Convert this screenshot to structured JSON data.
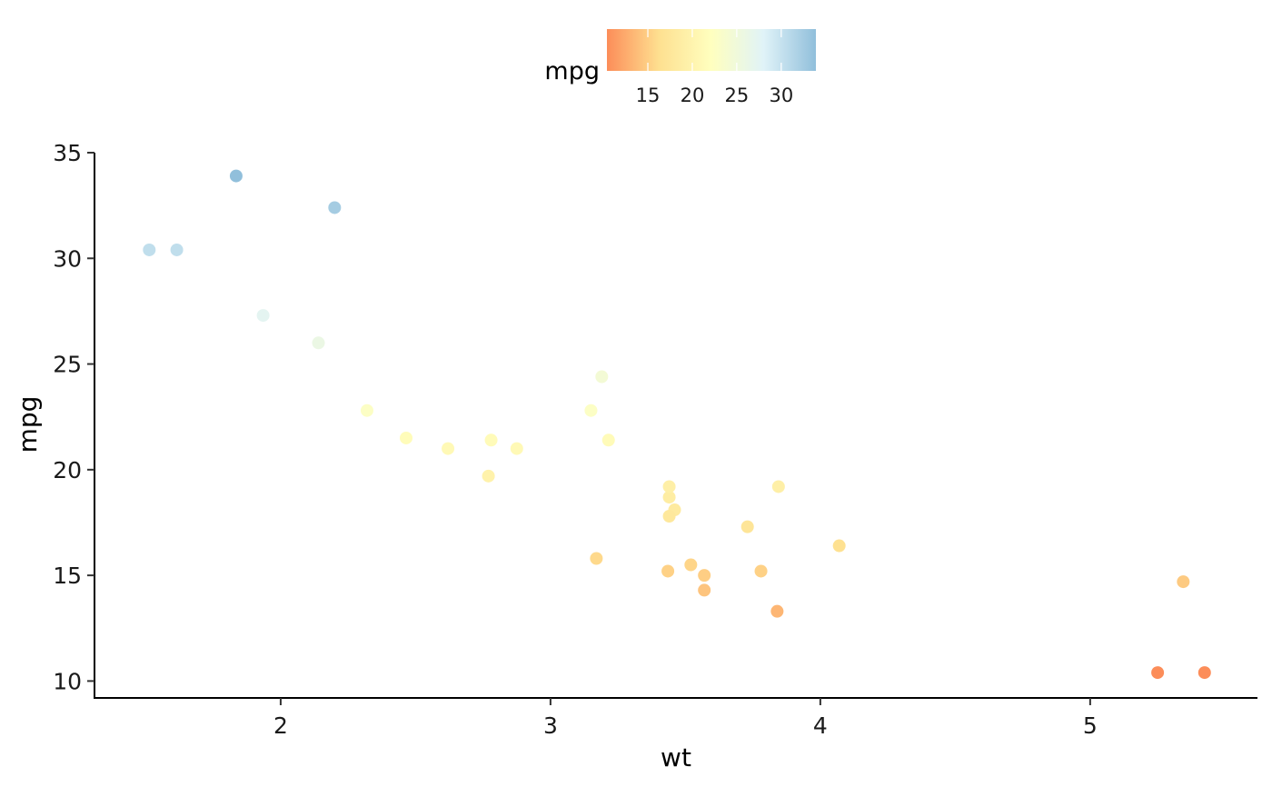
{
  "chart_data": {
    "type": "scatter",
    "xlabel": "wt",
    "ylabel": "mpg",
    "xlim": [
      1.31,
      5.62
    ],
    "ylim": [
      9.2,
      35.0
    ],
    "x_ticks": [
      2,
      3,
      4,
      5
    ],
    "y_ticks": [
      10,
      15,
      20,
      25,
      30,
      35
    ],
    "grid": false,
    "legend": {
      "title": "mpg",
      "position": "top",
      "type": "colorbar",
      "range": [
        10.4,
        33.9
      ],
      "ticks": [
        15,
        20,
        25,
        30
      ],
      "colors": [
        "#fc8d59",
        "#fee090",
        "#ffffbf",
        "#e0f3f8",
        "#91bfdb"
      ]
    },
    "color_by": "mpg",
    "points": [
      {
        "x": 2.62,
        "y": 21.0
      },
      {
        "x": 2.875,
        "y": 21.0
      },
      {
        "x": 2.32,
        "y": 22.8
      },
      {
        "x": 3.215,
        "y": 21.4
      },
      {
        "x": 3.44,
        "y": 18.7
      },
      {
        "x": 3.46,
        "y": 18.1
      },
      {
        "x": 3.57,
        "y": 14.3
      },
      {
        "x": 3.19,
        "y": 24.4
      },
      {
        "x": 3.15,
        "y": 22.8
      },
      {
        "x": 3.44,
        "y": 19.2
      },
      {
        "x": 3.44,
        "y": 17.8
      },
      {
        "x": 4.07,
        "y": 16.4
      },
      {
        "x": 3.73,
        "y": 17.3
      },
      {
        "x": 3.78,
        "y": 15.2
      },
      {
        "x": 5.25,
        "y": 10.4
      },
      {
        "x": 5.424,
        "y": 10.4
      },
      {
        "x": 5.345,
        "y": 14.7
      },
      {
        "x": 2.2,
        "y": 32.4
      },
      {
        "x": 1.615,
        "y": 30.4
      },
      {
        "x": 1.835,
        "y": 33.9
      },
      {
        "x": 2.465,
        "y": 21.5
      },
      {
        "x": 3.52,
        "y": 15.5
      },
      {
        "x": 3.435,
        "y": 15.2
      },
      {
        "x": 3.84,
        "y": 13.3
      },
      {
        "x": 3.845,
        "y": 19.2
      },
      {
        "x": 1.935,
        "y": 27.3
      },
      {
        "x": 2.14,
        "y": 26.0
      },
      {
        "x": 1.513,
        "y": 30.4
      },
      {
        "x": 3.17,
        "y": 15.8
      },
      {
        "x": 2.77,
        "y": 19.7
      },
      {
        "x": 3.57,
        "y": 15.0
      },
      {
        "x": 2.78,
        "y": 21.4
      }
    ]
  }
}
